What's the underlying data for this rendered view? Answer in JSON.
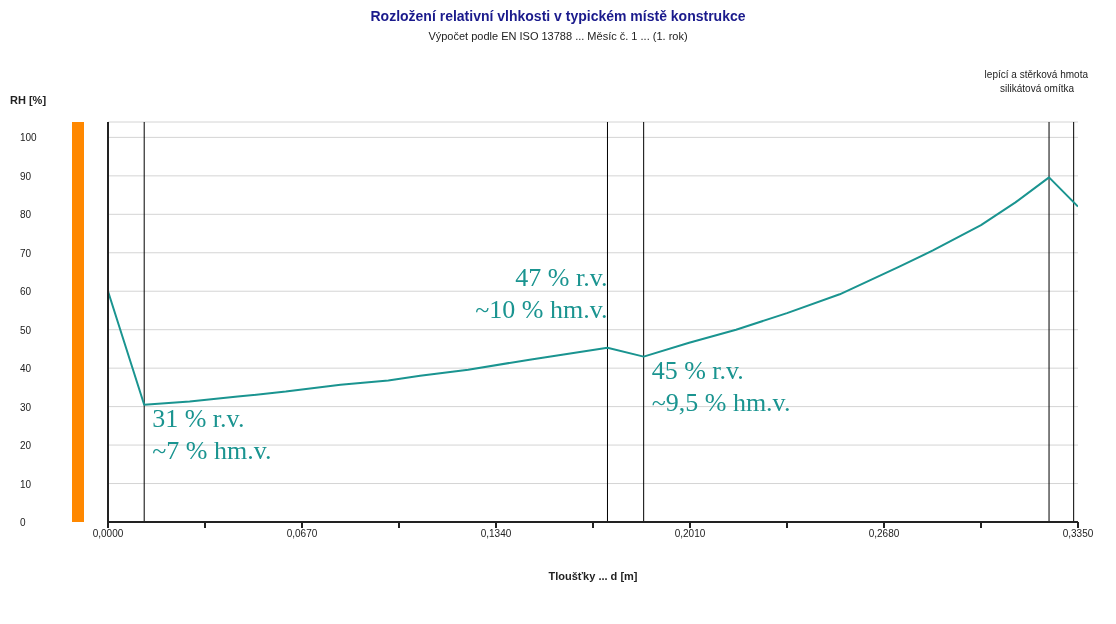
{
  "chart_data": {
    "type": "line",
    "title": "Rozložení relativní vlhkosti v typickém místě konstrukce",
    "subtitle": "Výpočet podle EN ISO 13788 ... Měsíc č. 1 ... (1. rok)",
    "xlabel": "Tloušťky ... d [m]",
    "ylabel": "RH [%]",
    "x": [
      0,
      0.0125,
      0.0282,
      0.0448,
      0.0614,
      0.0803,
      0.0968,
      0.1078,
      0.1244,
      0.1456,
      0.1725,
      0.185,
      0.2007,
      0.2169,
      0.2345,
      0.2527,
      0.2733,
      0.2849,
      0.3015,
      0.3134,
      0.325,
      0.335
    ],
    "series": [
      {
        "color": "#1a9490",
        "values": [
          60,
          30.5,
          31.3,
          32.6,
          33.9,
          35.7,
          36.8,
          38,
          39.6,
          42.2,
          45.3,
          43,
          46.6,
          50,
          54.3,
          59.2,
          66.4,
          70.6,
          77.2,
          83.1,
          89.6,
          82
        ]
      }
    ],
    "xlim": [
      0,
      0.335
    ],
    "ylim": [
      0,
      104
    ],
    "xticks": [
      {
        "value": 0,
        "label": "0,0000"
      },
      {
        "value": 0.0335,
        "label": null
      },
      {
        "value": 0.067,
        "label": "0,0670"
      },
      {
        "value": 0.1005,
        "label": null
      },
      {
        "value": 0.134,
        "label": "0,1340"
      },
      {
        "value": 0.1675,
        "label": null
      },
      {
        "value": 0.201,
        "label": "0,2010"
      },
      {
        "value": 0.2345,
        "label": null
      },
      {
        "value": 0.268,
        "label": "0,2680"
      },
      {
        "value": 0.3015,
        "label": null
      },
      {
        "value": 0.335,
        "label": "0,3350"
      }
    ],
    "yticks": [
      0,
      10,
      20,
      30,
      40,
      50,
      60,
      70,
      80,
      90,
      100
    ],
    "grid": "y",
    "marker": "none",
    "line_style": "solid",
    "ref_lines": [
      {
        "axis": "x",
        "value": 0.0125,
        "color": "#000000"
      },
      {
        "axis": "x",
        "value": 0.1725,
        "color": "#000000"
      },
      {
        "axis": "x",
        "value": 0.185,
        "color": "#000000"
      },
      {
        "axis": "x",
        "value": 0.325,
        "color": "#000000"
      },
      {
        "axis": "x",
        "value": 0.3335,
        "color": "#000000"
      }
    ],
    "annotations": [
      {
        "text": "31 % r.v.\n~7 % hm.v.",
        "x": 0.0125,
        "y": 30.5
      },
      {
        "text": "47 % r.v.\n~10 % hm.v.",
        "x": 0.1725,
        "y": 45.3
      },
      {
        "text": "45 % r.v.\n~9,5 % hm.v.",
        "x": 0.185,
        "y": 43
      },
      "lepící a stěrková hmota",
      "silikátová omítka"
    ]
  }
}
